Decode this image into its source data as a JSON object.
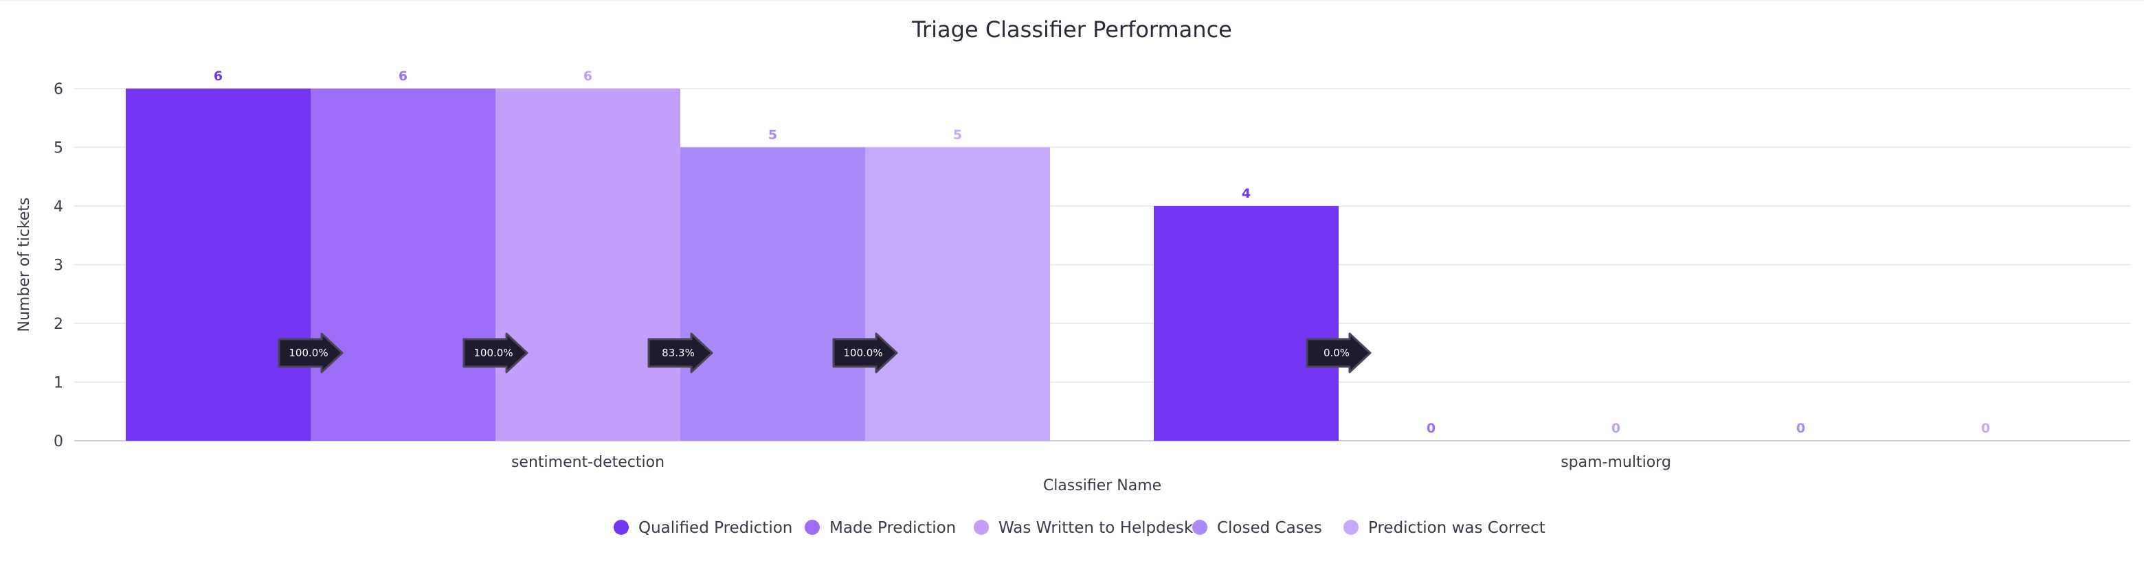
{
  "chart_data": {
    "type": "bar",
    "title": "Triage Classifier Performance",
    "xlabel": "Classifier Name",
    "ylabel": "Number of tickets",
    "ylim": [
      0,
      6
    ],
    "yticks": [
      0,
      1,
      2,
      3,
      4,
      5,
      6
    ],
    "grid": true,
    "legend_position": "bottom",
    "categories": [
      "sentiment-detection",
      "spam-multiorg"
    ],
    "series": [
      {
        "name": "Qualified Prediction",
        "color": "#7436f5",
        "values": [
          6,
          4
        ]
      },
      {
        "name": "Made Prediction",
        "color": "#9c6ef7",
        "values": [
          6,
          0
        ]
      },
      {
        "name": "Was Written to Helpdesk",
        "color": "#c29ffb",
        "values": [
          6,
          0
        ]
      },
      {
        "name": "Closed Cases",
        "color": "#a98af8",
        "values": [
          5,
          0
        ]
      },
      {
        "name": "Prediction was Correct",
        "color": "#c5a9fb",
        "values": [
          5,
          0
        ]
      }
    ],
    "conversion_labels": [
      [
        "100.0%",
        "100.0%",
        "83.3%",
        "100.0%"
      ],
      [
        "0.0%"
      ]
    ]
  }
}
